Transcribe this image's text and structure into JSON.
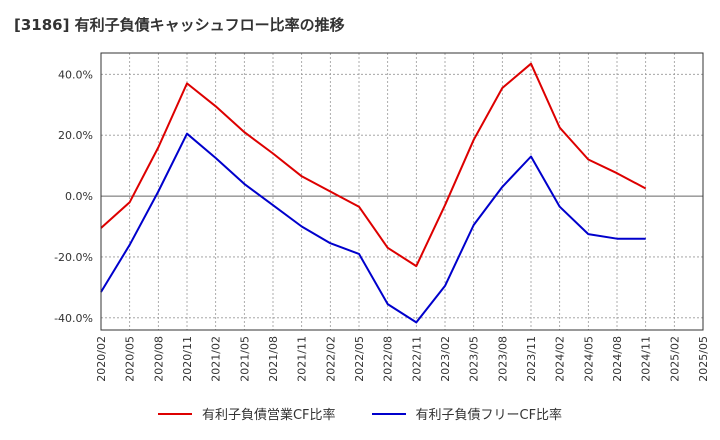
{
  "title": "[3186]  有利子負債キャッシュフロー比率の推移",
  "chart_data": {
    "type": "line",
    "title": "[3186]  有利子負債キャッシュフロー比率の推移",
    "xlabel": "",
    "ylabel": "",
    "x": [
      "2020/02",
      "2020/05",
      "2020/08",
      "2020/11",
      "2021/02",
      "2021/05",
      "2021/08",
      "2021/11",
      "2022/02",
      "2022/05",
      "2022/08",
      "2022/11",
      "2023/02",
      "2023/05",
      "2023/08",
      "2023/11",
      "2024/02",
      "2024/05",
      "2024/08",
      "2024/11",
      "2025/02",
      "2025/05"
    ],
    "ytick_labels": [
      "-40.0%",
      "-20.0%",
      "0.0%",
      "20.0%",
      "40.0%"
    ],
    "yticks": [
      -40,
      -20,
      0,
      20,
      40
    ],
    "ylim": [
      -44,
      47
    ],
    "grid": true,
    "legend_position": "bottom",
    "series": [
      {
        "name": "有利子負債営業CF比率",
        "color": "#dd0000",
        "values": [
          -10.5,
          -2.0,
          16.0,
          37.0,
          29.5,
          21.0,
          14.0,
          6.5,
          1.5,
          -3.5,
          -17.0,
          -23.0,
          -3.0,
          18.5,
          35.5,
          43.5,
          22.5,
          12.0,
          7.5,
          2.5,
          null,
          null
        ]
      },
      {
        "name": "有利子負債フリーCF比率",
        "color": "#0000cc",
        "values": [
          -31.5,
          -16.0,
          1.5,
          20.5,
          12.5,
          4.0,
          -3.0,
          -10.0,
          -15.5,
          -19.0,
          -35.5,
          -41.5,
          -29.5,
          -9.5,
          3.0,
          13.0,
          -3.5,
          -12.5,
          -14.0,
          -14.0,
          null,
          null
        ]
      }
    ]
  }
}
